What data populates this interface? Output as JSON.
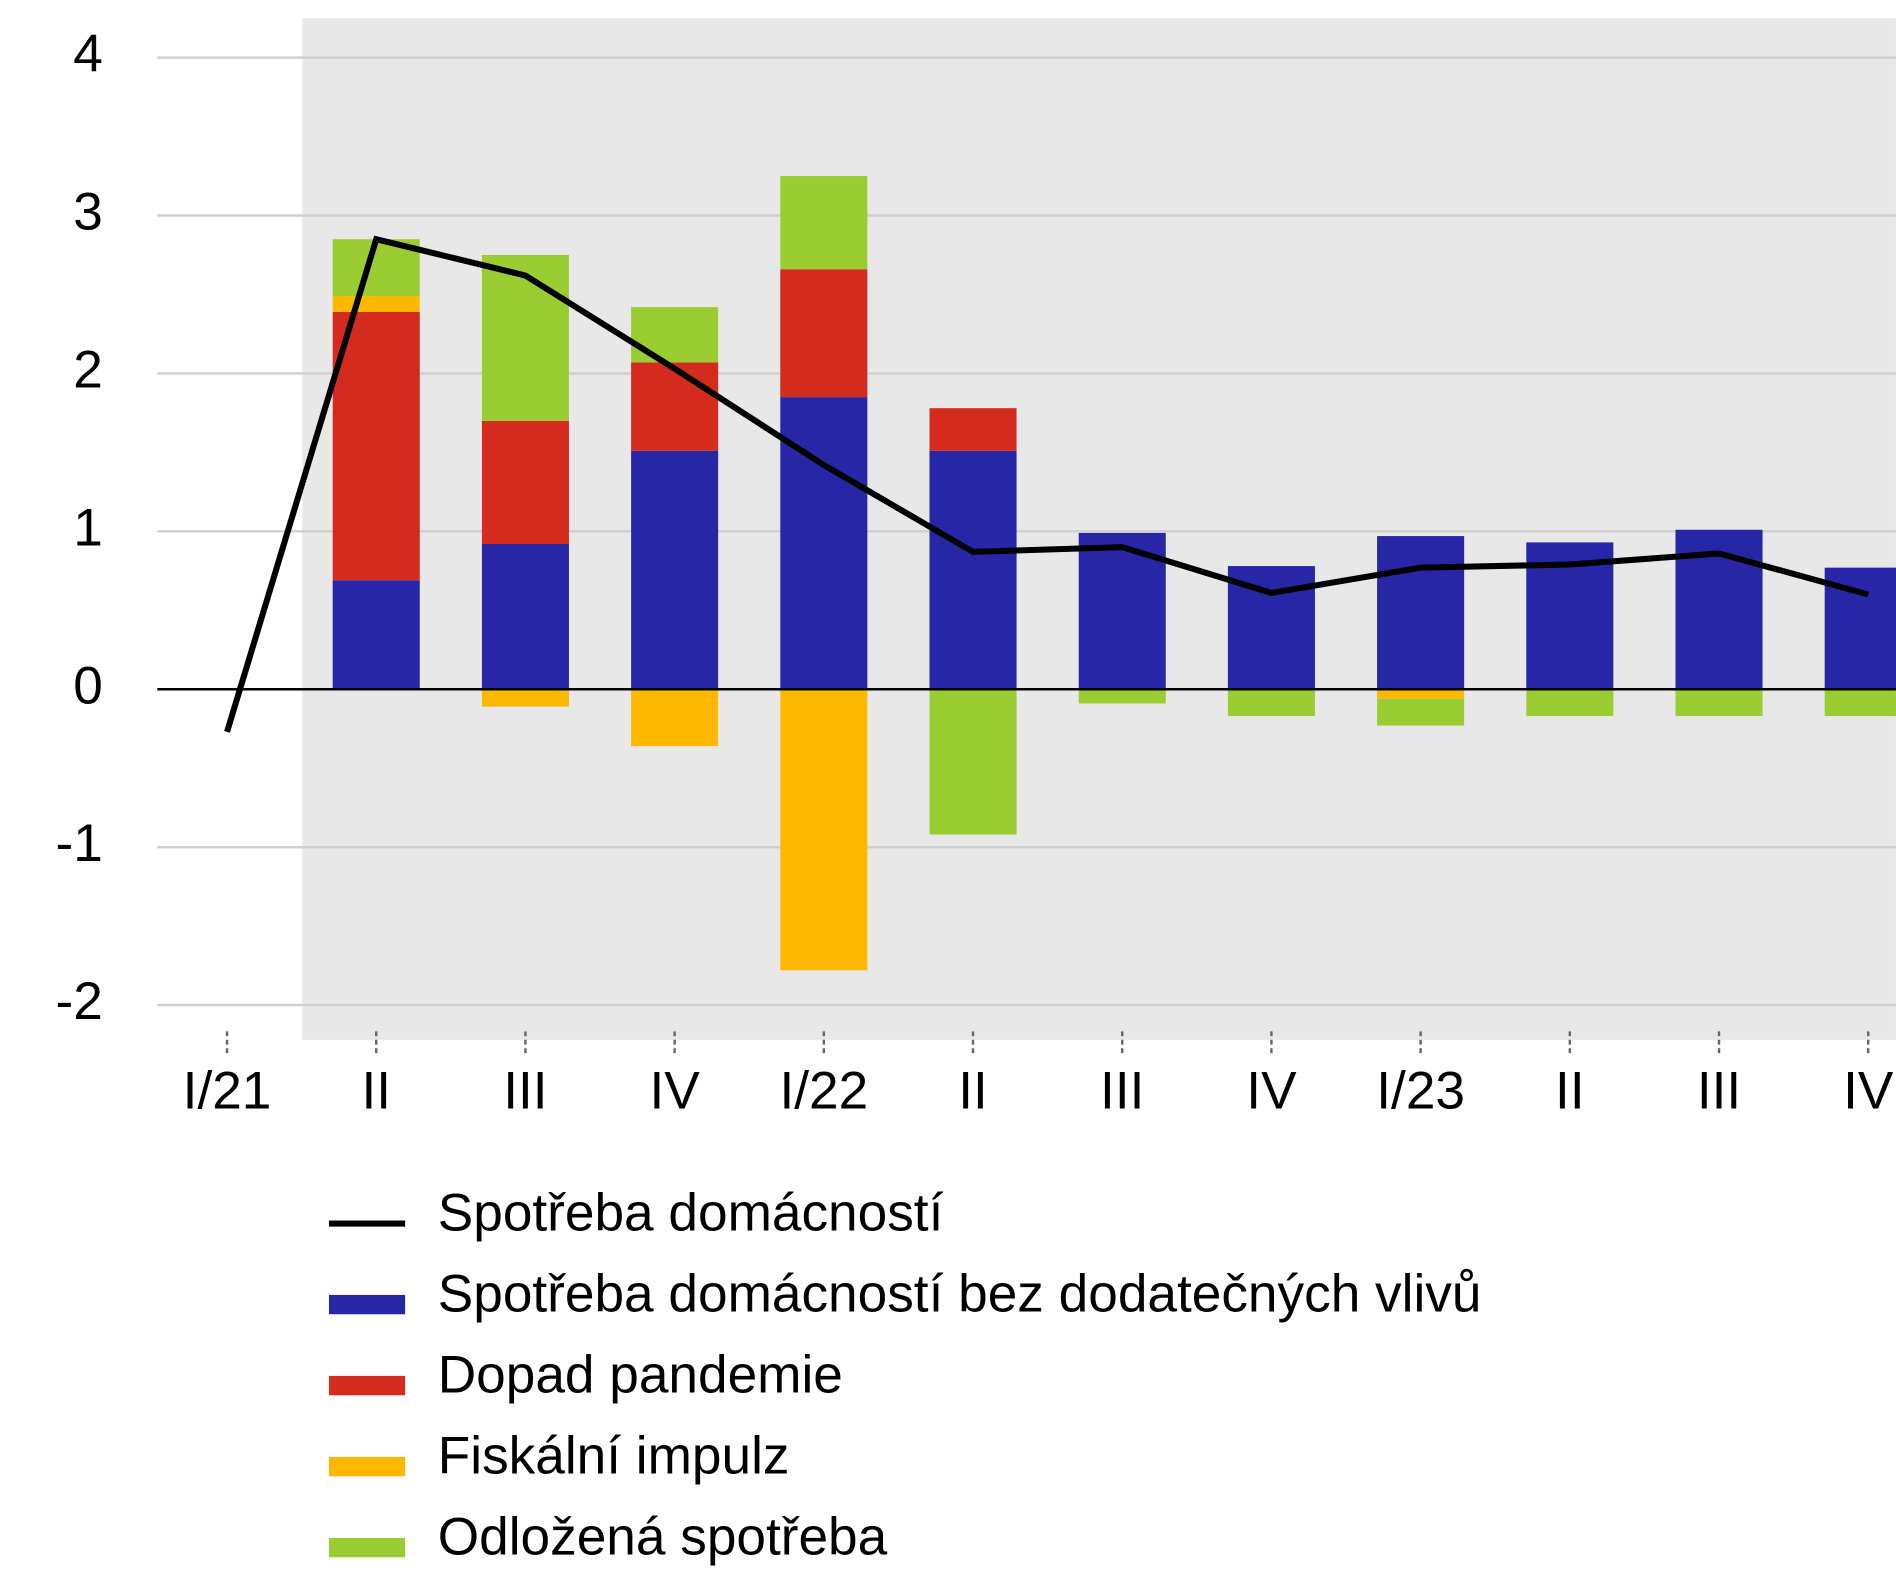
{
  "chart_data": {
    "type": "bar",
    "stacked": true,
    "categories": [
      "I/21",
      "II",
      "III",
      "IV",
      "I/22",
      "II",
      "III",
      "IV",
      "I/23",
      "II",
      "III",
      "IV"
    ],
    "series": [
      {
        "name": "Spotřeba domácností",
        "type": "line",
        "color": "#000000",
        "values": [
          -0.27,
          2.85,
          2.62,
          2.03,
          1.42,
          0.87,
          0.9,
          0.61,
          0.77,
          0.79,
          0.86,
          0.6
        ]
      },
      {
        "name": "Spotřeba domácností bez dodatečných vlivů",
        "color": "#2626a6",
        "values": [
          null,
          0.69,
          0.92,
          1.51,
          1.85,
          1.51,
          0.99,
          0.78,
          0.97,
          0.93,
          1.01,
          0.77
        ]
      },
      {
        "name": "Dopad pandemie",
        "color": "#d52b1e",
        "values": [
          null,
          1.7,
          0.78,
          0.56,
          0.81,
          0.27,
          0,
          0,
          0,
          0,
          0,
          0
        ]
      },
      {
        "name": "Fiskální impulz",
        "color": "#ffb800",
        "values": [
          null,
          0.1,
          -0.11,
          -0.36,
          -1.78,
          0,
          0,
          0,
          -0.06,
          0,
          0,
          0
        ]
      },
      {
        "name": "Odložená spotřeba",
        "color": "#9acd32",
        "values": [
          null,
          0.36,
          1.05,
          0.35,
          0.59,
          -0.92,
          -0.09,
          -0.17,
          -0.17,
          -0.17,
          -0.17,
          -0.17
        ]
      }
    ],
    "ylim": [
      -2.22,
      4.25
    ],
    "yticks": [
      -2,
      -1,
      0,
      1,
      2,
      3,
      4
    ],
    "grid": true
  }
}
